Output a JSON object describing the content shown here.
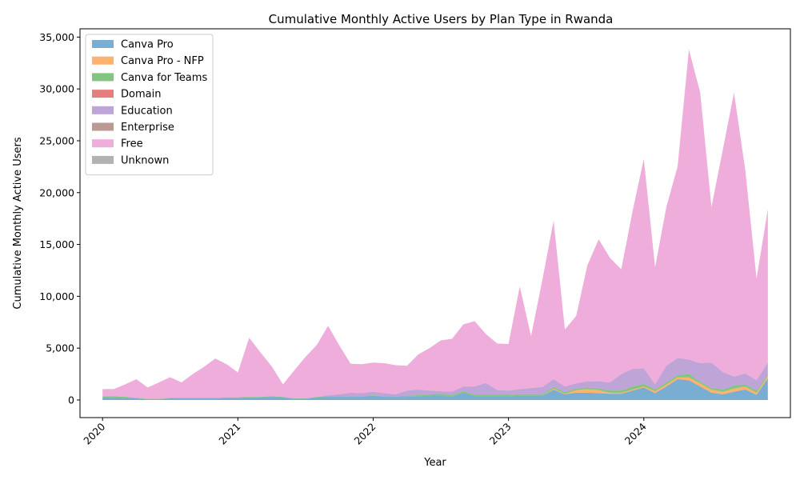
{
  "chart_data": {
    "type": "area",
    "stacked": true,
    "title": "Cumulative Monthly Active Users by Plan Type in Rwanda",
    "xlabel": "Year",
    "ylabel": "Cumulative Monthly Active Users",
    "x_start": "2020-01",
    "x_ticks": [
      "2020",
      "2021",
      "2022",
      "2023",
      "2024"
    ],
    "xlim": [
      "2019-11",
      "2025-02"
    ],
    "y_ticks": [
      "0",
      "5,000",
      "10,000",
      "15,000",
      "20,000",
      "25,000",
      "30,000",
      "35,000"
    ],
    "ylim": [
      -1700,
      35800
    ],
    "grid": false,
    "legend_position": "top-left",
    "x": [
      "2020-01",
      "2020-02",
      "2020-03",
      "2020-04",
      "2020-05",
      "2020-06",
      "2020-07",
      "2020-08",
      "2020-09",
      "2020-10",
      "2020-11",
      "2020-12",
      "2021-01",
      "2021-02",
      "2021-03",
      "2021-04",
      "2021-05",
      "2021-06",
      "2021-07",
      "2021-08",
      "2021-09",
      "2021-10",
      "2021-11",
      "2021-12",
      "2022-01",
      "2022-02",
      "2022-03",
      "2022-04",
      "2022-05",
      "2022-06",
      "2022-07",
      "2022-08",
      "2022-09",
      "2022-10",
      "2022-11",
      "2022-12",
      "2023-01",
      "2023-02",
      "2023-03",
      "2023-04",
      "2023-05",
      "2023-06",
      "2023-07",
      "2023-08",
      "2023-09",
      "2023-10",
      "2023-11",
      "2023-12",
      "2024-01",
      "2024-02",
      "2024-03",
      "2024-04",
      "2024-05",
      "2024-06",
      "2024-07",
      "2024-08",
      "2024-09",
      "2024-10",
      "2024-11",
      "2024-12"
    ],
    "series": [
      {
        "name": "Canva Pro",
        "color": "#1f77b4",
        "values": [
          250,
          250,
          200,
          150,
          50,
          50,
          150,
          150,
          150,
          150,
          150,
          200,
          200,
          250,
          250,
          300,
          250,
          100,
          100,
          250,
          300,
          300,
          300,
          300,
          400,
          300,
          300,
          300,
          350,
          400,
          450,
          300,
          700,
          350,
          350,
          350,
          350,
          400,
          400,
          400,
          1000,
          550,
          700,
          700,
          650,
          600,
          600,
          900,
          1200,
          650,
          1300,
          2000,
          1900,
          1300,
          700,
          550,
          800,
          1000,
          500,
          2100
        ]
      },
      {
        "name": "Canva Pro - NFP",
        "color": "#ff7f0e",
        "values": [
          0,
          0,
          0,
          0,
          0,
          0,
          0,
          0,
          0,
          0,
          0,
          0,
          0,
          0,
          0,
          0,
          0,
          0,
          0,
          0,
          0,
          0,
          0,
          0,
          0,
          0,
          0,
          0,
          0,
          0,
          0,
          0,
          0,
          0,
          0,
          0,
          0,
          0,
          0,
          0,
          100,
          50,
          250,
          350,
          300,
          100,
          100,
          100,
          100,
          200,
          200,
          200,
          300,
          300,
          300,
          250,
          300,
          300,
          200,
          200
        ]
      },
      {
        "name": "Canva for Teams",
        "color": "#2ca02c",
        "values": [
          100,
          100,
          100,
          50,
          50,
          50,
          50,
          50,
          50,
          50,
          50,
          50,
          50,
          50,
          50,
          50,
          50,
          50,
          50,
          50,
          50,
          50,
          50,
          50,
          50,
          50,
          50,
          100,
          100,
          150,
          150,
          150,
          150,
          150,
          150,
          150,
          150,
          150,
          150,
          150,
          150,
          150,
          150,
          150,
          150,
          200,
          200,
          300,
          250,
          150,
          200,
          200,
          300,
          150,
          150,
          200,
          300,
          200,
          200,
          150
        ]
      },
      {
        "name": "Domain",
        "color": "#d62728",
        "values": [
          0,
          0,
          0,
          0,
          0,
          0,
          0,
          0,
          0,
          0,
          0,
          0,
          0,
          0,
          0,
          0,
          0,
          0,
          0,
          0,
          0,
          0,
          0,
          0,
          0,
          0,
          0,
          0,
          0,
          0,
          0,
          0,
          0,
          0,
          0,
          0,
          0,
          0,
          0,
          0,
          0,
          0,
          0,
          0,
          0,
          0,
          0,
          0,
          0,
          0,
          0,
          0,
          0,
          0,
          0,
          0,
          0,
          0,
          0,
          0
        ]
      },
      {
        "name": "Education",
        "color": "#9467bd",
        "values": [
          0,
          0,
          0,
          0,
          0,
          0,
          0,
          0,
          0,
          0,
          0,
          0,
          0,
          0,
          0,
          0,
          0,
          0,
          0,
          0,
          100,
          200,
          350,
          300,
          350,
          300,
          200,
          500,
          550,
          350,
          250,
          350,
          450,
          800,
          1150,
          450,
          400,
          500,
          600,
          700,
          750,
          550,
          500,
          600,
          700,
          800,
          1600,
          1700,
          1500,
          500,
          1600,
          1650,
          1400,
          1800,
          2450,
          1700,
          850,
          1050,
          1000,
          1150
        ]
      },
      {
        "name": "Enterprise",
        "color": "#8c564b",
        "values": [
          0,
          0,
          0,
          0,
          0,
          0,
          0,
          0,
          0,
          0,
          0,
          0,
          0,
          0,
          0,
          0,
          0,
          0,
          0,
          0,
          0,
          0,
          0,
          0,
          0,
          0,
          0,
          0,
          0,
          0,
          0,
          0,
          0,
          0,
          0,
          0,
          0,
          0,
          0,
          0,
          0,
          0,
          0,
          0,
          0,
          0,
          0,
          0,
          0,
          0,
          0,
          0,
          0,
          0,
          0,
          0,
          0,
          0,
          0,
          0
        ]
      },
      {
        "name": "Free",
        "color": "#e377c2",
        "values": [
          700,
          700,
          1200,
          1800,
          1100,
          1600,
          2000,
          1500,
          2300,
          3000,
          3800,
          3200,
          2400,
          5700,
          4300,
          2900,
          1200,
          2700,
          4000,
          5000,
          6700,
          4700,
          2800,
          2800,
          2800,
          2900,
          2800,
          2400,
          3400,
          4100,
          4900,
          5100,
          6000,
          6300,
          4700,
          4500,
          4500,
          9900,
          5000,
          10300,
          15300,
          5500,
          6500,
          11200,
          13700,
          12000,
          10100,
          15200,
          20200,
          11300,
          15300,
          18500,
          29900,
          26100,
          15000,
          21400,
          27400,
          19600,
          9800,
          14800
        ]
      },
      {
        "name": "Unknown",
        "color": "#7f7f7f",
        "values": [
          0,
          0,
          0,
          0,
          0,
          0,
          0,
          0,
          0,
          0,
          0,
          0,
          0,
          0,
          0,
          0,
          0,
          0,
          0,
          0,
          0,
          0,
          0,
          0,
          0,
          0,
          0,
          0,
          0,
          0,
          0,
          0,
          0,
          0,
          0,
          0,
          0,
          0,
          0,
          0,
          0,
          0,
          0,
          0,
          0,
          0,
          0,
          0,
          0,
          0,
          0,
          0,
          0,
          0,
          0,
          0,
          0,
          0,
          0,
          0
        ]
      }
    ]
  }
}
